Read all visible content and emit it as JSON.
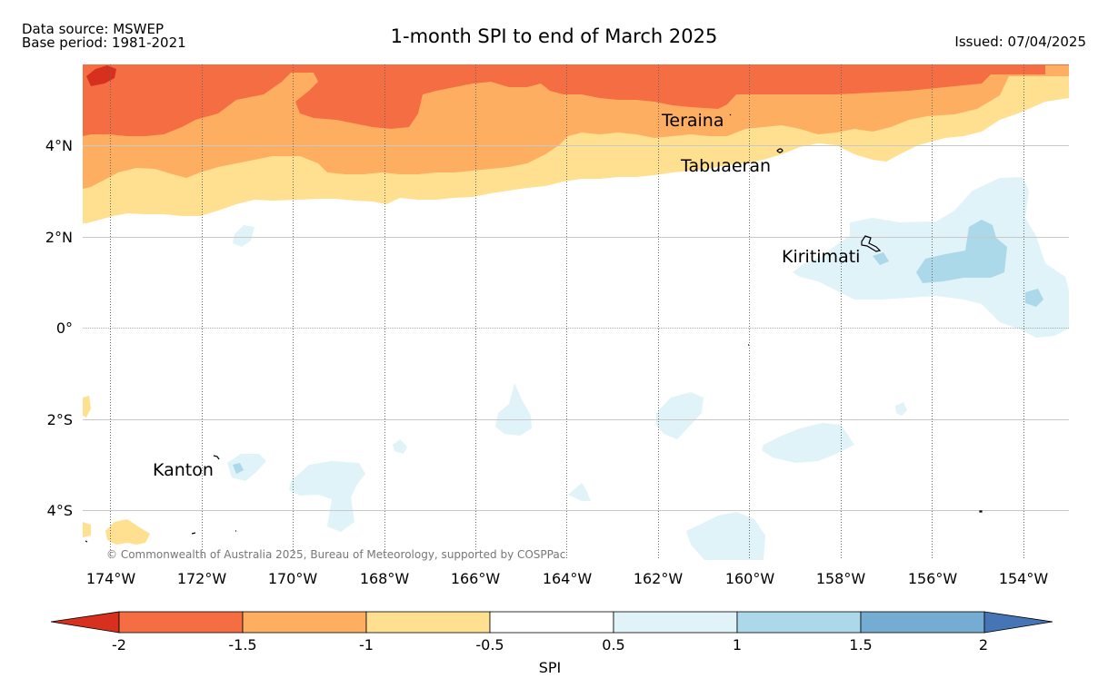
{
  "header": {
    "source": "Data source: MSWEP",
    "base_period": "Base period: 1981-2021",
    "title": "1-month SPI to end of March 2025",
    "issued": "Issued: 07/04/2025"
  },
  "map": {
    "lat_labels": [
      "4°N",
      "2°N",
      "0°",
      "2°S",
      "4°S"
    ],
    "lon_labels": [
      "174°W",
      "172°W",
      "170°W",
      "168°W",
      "166°W",
      "164°W",
      "162°W",
      "160°W",
      "158°W",
      "156°W",
      "154°W"
    ],
    "places": [
      "Teraina",
      "Tabuaeran",
      "Kiritimati",
      "Kanton"
    ],
    "copyright": "© Commonwealth of Australia 2025, Bureau of Meteorology, supported by COSPPac"
  },
  "colorbar": {
    "label": "SPI",
    "ticks": [
      "-2",
      "-1.5",
      "-1",
      "-0.5",
      "0.5",
      "1",
      "1.5",
      "2"
    ],
    "colors": {
      "below_min": "#d7301f",
      "c1": "#f46d43",
      "c2": "#fdae61",
      "c3": "#fee090",
      "c4": "#ffffff",
      "c5": "#e0f3f8",
      "c6": "#abd9e9",
      "c7": "#74add1",
      "above_max": "#4575b4"
    }
  }
}
